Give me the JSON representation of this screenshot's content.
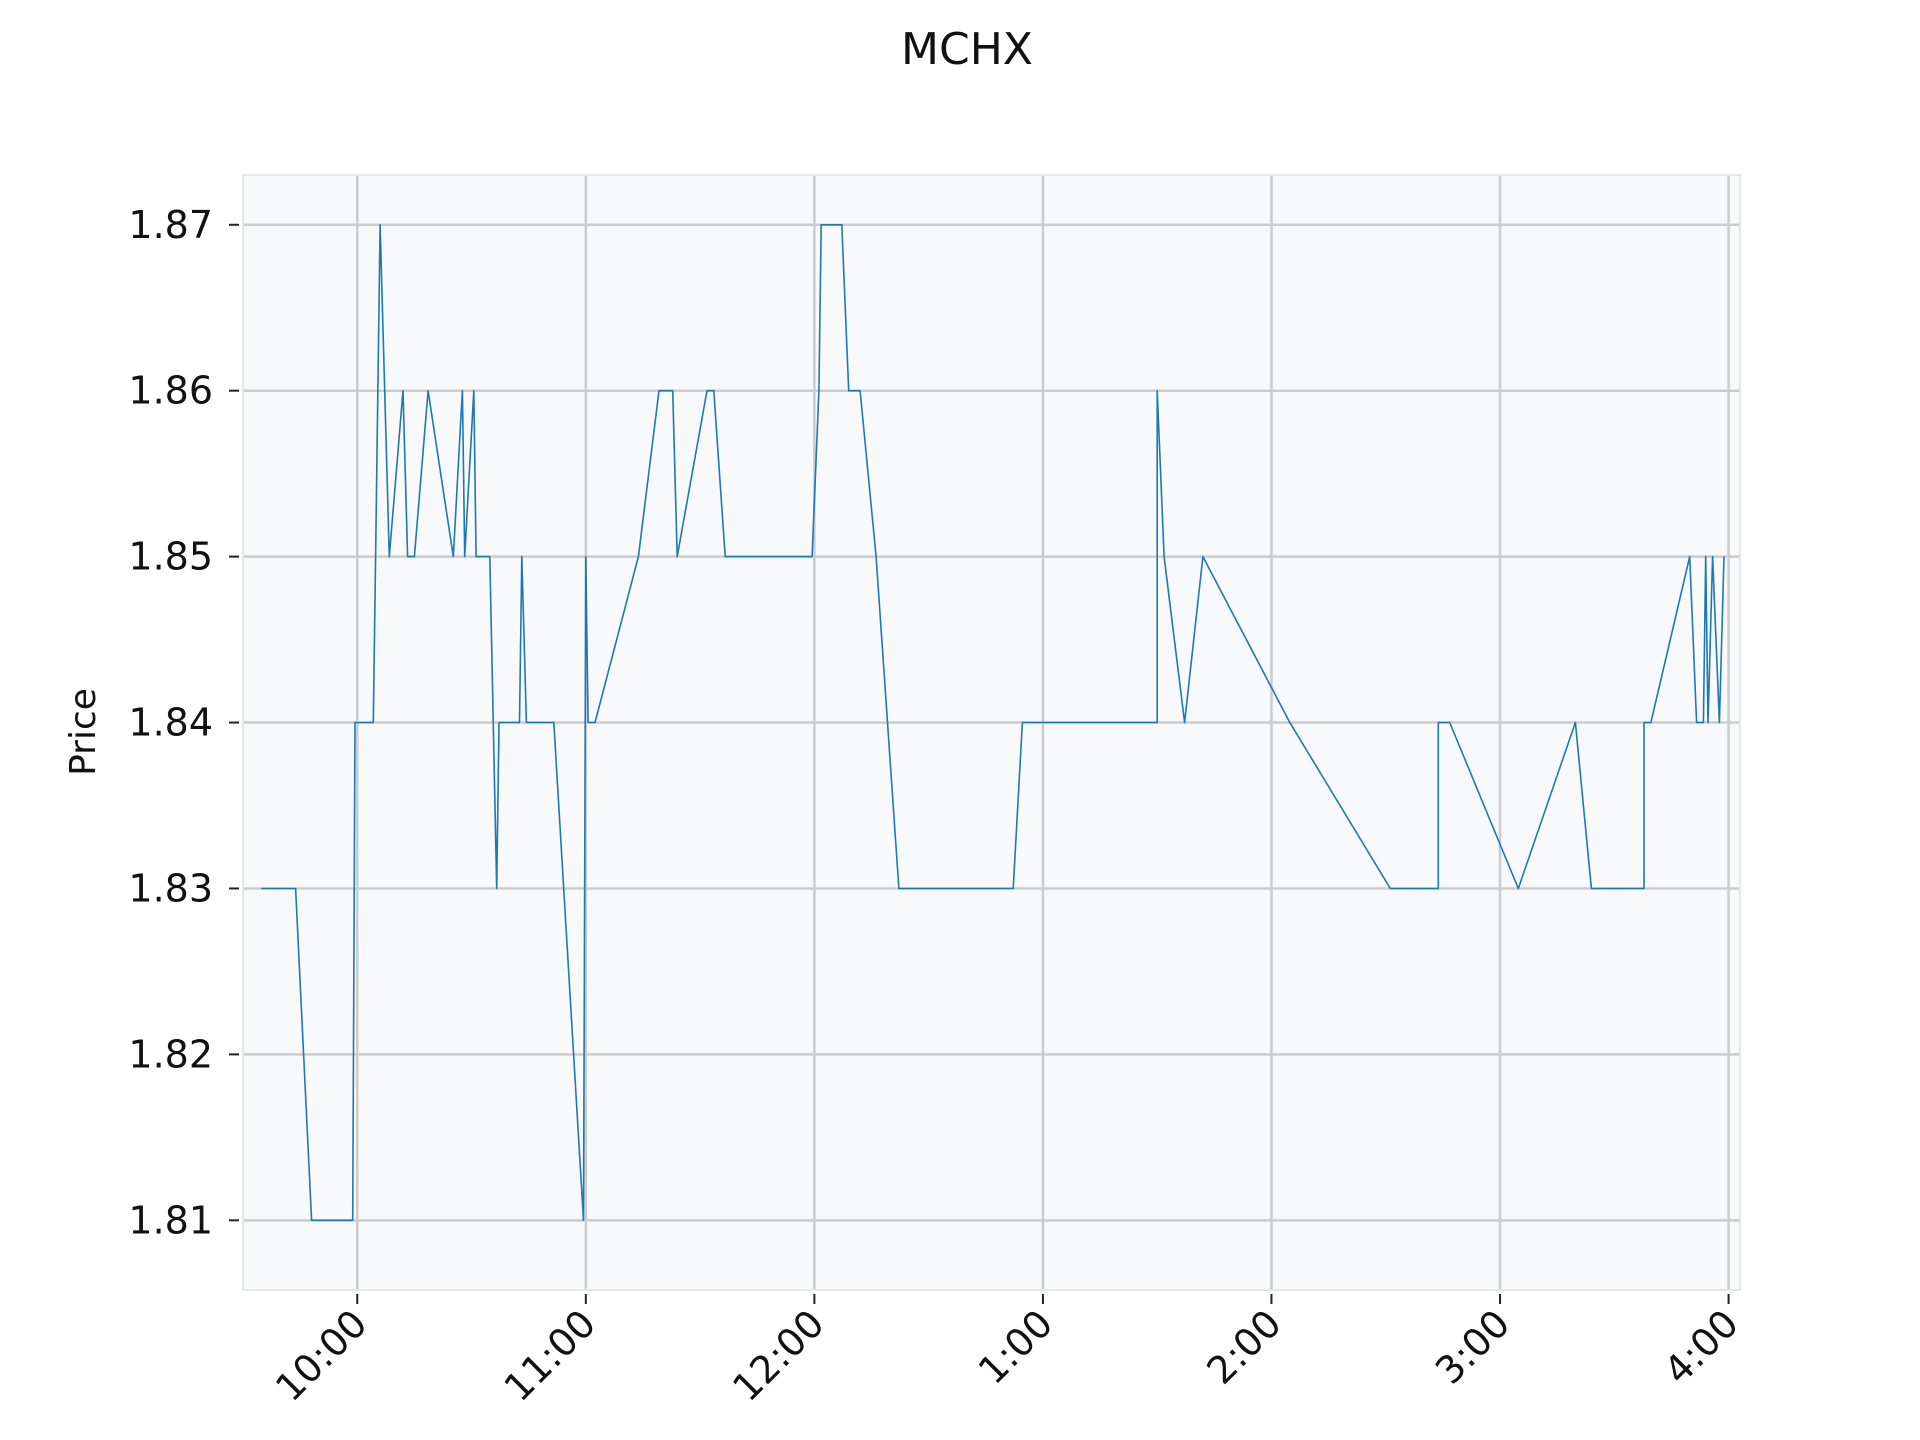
{
  "chart_data": {
    "type": "line",
    "title": "MCHX",
    "xlabel": "",
    "ylabel": "Price",
    "grid": true,
    "legend": "none",
    "xlim": [
      9.5,
      16.05
    ],
    "ylim": [
      1.8058,
      1.873
    ],
    "x_ticks": [
      {
        "value": 10,
        "label": "10:00"
      },
      {
        "value": 11,
        "label": "11:00"
      },
      {
        "value": 12,
        "label": "12:00"
      },
      {
        "value": 13,
        "label": "1:00"
      },
      {
        "value": 14,
        "label": "2:00"
      },
      {
        "value": 15,
        "label": "3:00"
      },
      {
        "value": 16,
        "label": "4:00"
      }
    ],
    "y_ticks": [
      {
        "value": 1.81,
        "label": "1.81"
      },
      {
        "value": 1.82,
        "label": "1.82"
      },
      {
        "value": 1.83,
        "label": "1.83"
      },
      {
        "value": 1.84,
        "label": "1.84"
      },
      {
        "value": 1.85,
        "label": "1.85"
      },
      {
        "value": 1.86,
        "label": "1.86"
      },
      {
        "value": 1.87,
        "label": "1.87"
      }
    ],
    "colors": {
      "line": "#1f77b4",
      "plot_bg": "#f8f9fa",
      "grid": "#cccccc"
    },
    "series": [
      {
        "x": [
          9.58,
          9.73,
          9.8,
          9.98,
          9.99,
          10.07,
          10.08,
          10.1,
          10.12,
          10.14,
          10.2,
          10.22,
          10.25,
          10.31,
          10.42,
          10.46,
          10.47,
          10.51,
          10.52,
          10.58,
          10.61,
          10.62,
          10.71,
          10.72,
          10.74,
          10.83,
          10.86,
          10.99,
          11.0,
          11.01,
          11.04,
          11.23,
          11.32,
          11.38,
          11.4,
          11.53,
          11.56,
          11.61,
          11.67,
          11.99,
          12.02,
          12.03,
          12.12,
          12.15,
          12.2,
          12.27,
          12.37,
          12.87,
          12.91,
          12.99,
          13.05,
          13.5,
          13.5,
          13.53,
          13.62,
          13.7,
          14.08,
          14.52,
          14.73,
          14.73,
          14.78,
          15.08,
          15.33,
          15.4,
          15.63,
          15.63,
          15.66,
          15.83,
          15.86,
          15.89,
          15.9,
          15.91,
          15.93,
          15.96,
          15.98
        ],
        "y": [
          1.83,
          1.83,
          1.81,
          1.81,
          1.84,
          1.84,
          1.85,
          1.87,
          1.86,
          1.85,
          1.86,
          1.85,
          1.85,
          1.86,
          1.85,
          1.86,
          1.85,
          1.86,
          1.85,
          1.85,
          1.83,
          1.84,
          1.84,
          1.85,
          1.84,
          1.84,
          1.84,
          1.81,
          1.85,
          1.84,
          1.84,
          1.85,
          1.86,
          1.86,
          1.85,
          1.86,
          1.86,
          1.85,
          1.85,
          1.85,
          1.86,
          1.87,
          1.87,
          1.86,
          1.86,
          1.85,
          1.83,
          1.83,
          1.84,
          1.84,
          1.84,
          1.84,
          1.86,
          1.85,
          1.84,
          1.85,
          1.84,
          1.83,
          1.83,
          1.84,
          1.84,
          1.83,
          1.84,
          1.83,
          1.83,
          1.84,
          1.84,
          1.85,
          1.84,
          1.84,
          1.85,
          1.84,
          1.85,
          1.84,
          1.85
        ]
      }
    ]
  }
}
